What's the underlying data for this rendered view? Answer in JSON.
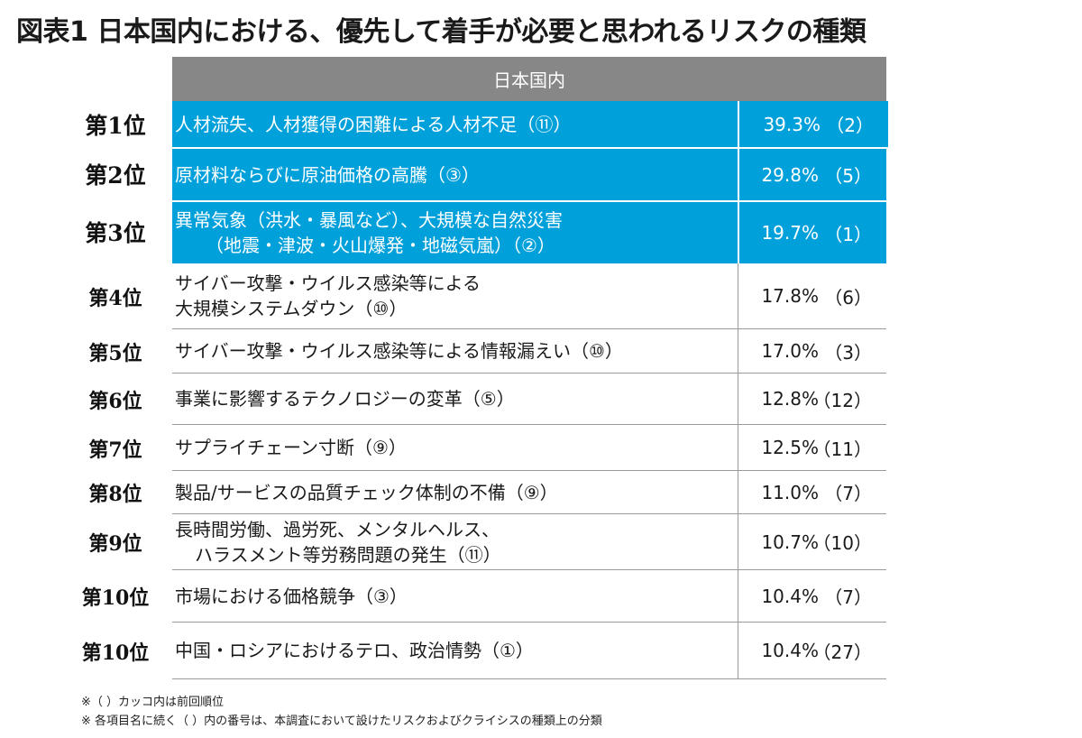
{
  "title": "図表1 日本国内における、優先して着手が必要と思われるリスクの種類",
  "table": {
    "header": "日本国内",
    "rows": [
      {
        "rank": "第1位",
        "lines": [
          "人材流失、人材獲得の困難による人材不足（⑪）"
        ],
        "pct": "39.3%",
        "prev": "（2）"
      },
      {
        "rank": "第2位",
        "lines": [
          "原材料ならびに原油価格の高騰（③）"
        ],
        "pct": "29.8%",
        "prev": "（5）"
      },
      {
        "rank": "第3位",
        "lines": [
          "異常気象（洪水・暴風など）、大規模な自然災害",
          "（地震・津波・火山爆発・地磁気嵐）（②）"
        ],
        "pct": "19.7%",
        "prev": "（1）"
      },
      {
        "rank": "第4位",
        "lines": [
          "サイバー攻撃・ウイルス感染等による",
          "大規模システムダウン（⑩）"
        ],
        "pct": "17.8%",
        "prev": "（6）"
      },
      {
        "rank": "第5位",
        "lines": [
          "サイバー攻撃・ウイルス感染等による情報漏えい（⑩）"
        ],
        "pct": "17.0%",
        "prev": "（3）"
      },
      {
        "rank": "第6位",
        "lines": [
          "事業に影響するテクノロジーの変革（⑤）"
        ],
        "pct": "12.8%",
        "prev": "（12）"
      },
      {
        "rank": "第7位",
        "lines": [
          "サプライチェーン寸断（⑨）"
        ],
        "pct": "12.5%",
        "prev": "（11）"
      },
      {
        "rank": "第8位",
        "lines": [
          "製品/サービスの品質チェック体制の不備（⑨）"
        ],
        "pct": "11.0%",
        "prev": "（7）"
      },
      {
        "rank": "第9位",
        "lines": [
          "長時間労働、過労死、メンタルヘルス、",
          "ハラスメント等労務問題の発生（⑪）"
        ],
        "pct": "10.7%",
        "prev": "（10）"
      },
      {
        "rank": "第10位",
        "lines": [
          "市場における価格競争（③）"
        ],
        "pct": "10.4%",
        "prev": "（7）"
      },
      {
        "rank": "第10位",
        "lines": [
          "中国・ロシアにおけるテロ、政治情勢（①）"
        ],
        "pct": "10.4%",
        "prev": "（27）"
      }
    ]
  },
  "notes": [
    "※（ ）カッコ内は前回順位",
    "※ 各項目名に続く（ ）内の番号は、本調査において設けたリスクおよびクライシスの種類上の分類"
  ],
  "colors": {
    "highlight": "#00a0db",
    "header": "#878787"
  }
}
